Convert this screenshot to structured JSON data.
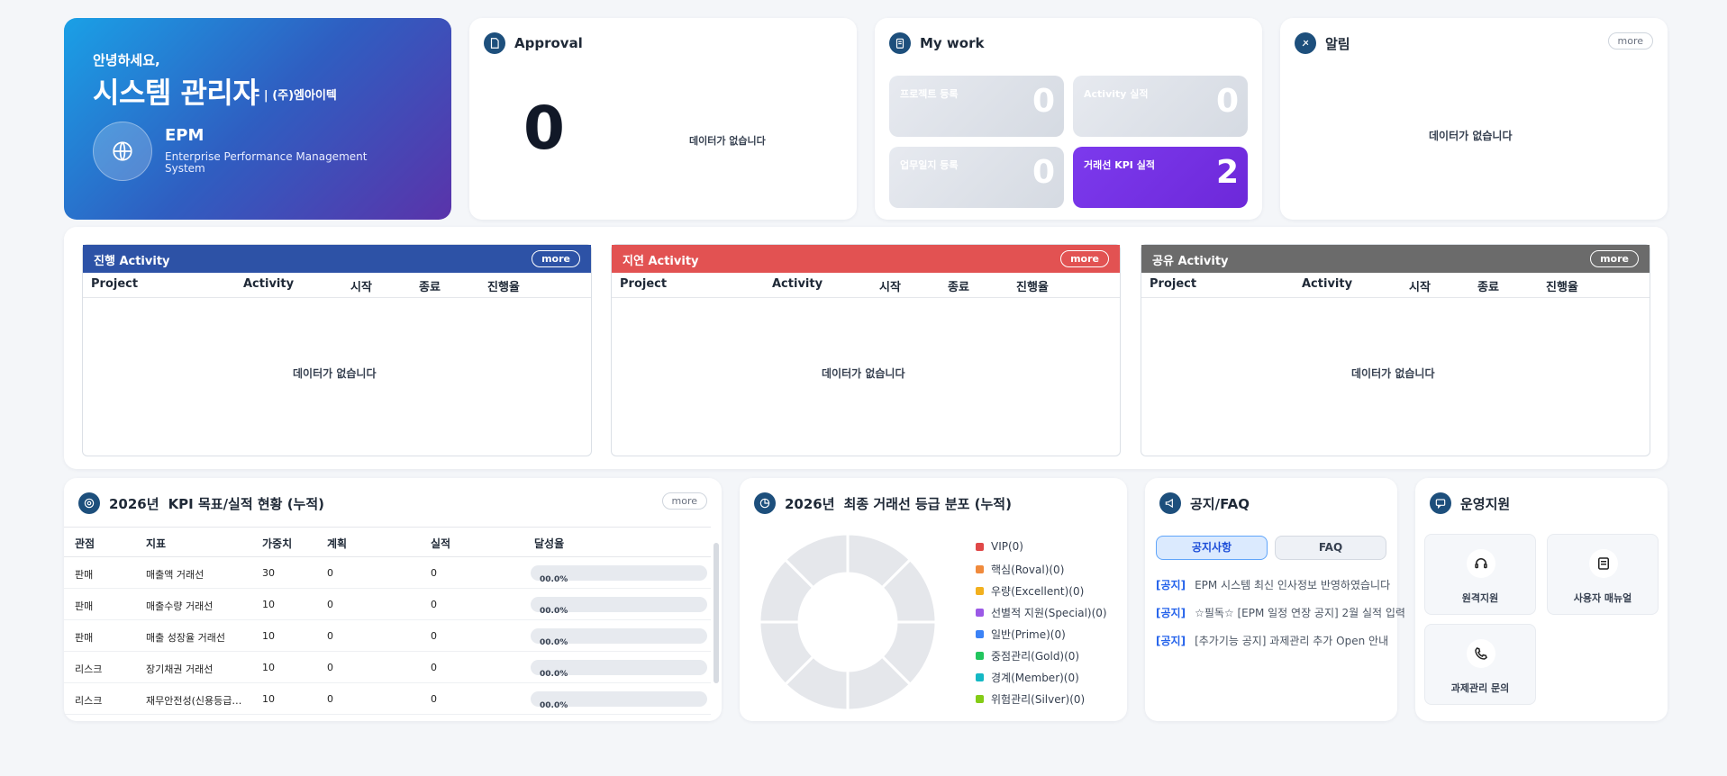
{
  "welcome": {
    "greeting": "안녕하세요,",
    "user_name": "시스템 관리자",
    "company": "- | (주)엠아이텍",
    "product": "EPM",
    "product_desc": "Enterprise Performance Management System"
  },
  "approval": {
    "title": "Approval",
    "count": "0",
    "empty": "데이터가 없습니다"
  },
  "mywork": {
    "title": "My work",
    "tiles": [
      {
        "label": "프로젝트 등록",
        "value": "0"
      },
      {
        "label": "Activity 실적",
        "value": "0"
      },
      {
        "label": "업무일지 등록",
        "value": "0"
      },
      {
        "label": "거래선 KPI 실적",
        "value": "2"
      }
    ]
  },
  "alarm": {
    "title": "알림",
    "more": "more",
    "empty": "데이터가 없습니다"
  },
  "activities": {
    "columns": [
      "Project",
      "Activity",
      "시작",
      "종료",
      "진행율"
    ],
    "empty": "데이터가 없습니다",
    "more": "more",
    "panels": [
      {
        "title": "진행 Activity",
        "color": "#2d52a6"
      },
      {
        "title": "지연 Activity",
        "color": "#e25252"
      },
      {
        "title": "공유 Activity",
        "color": "#6b6b6b"
      }
    ]
  },
  "kpi": {
    "year": "2026년",
    "title": "KPI 목표/실적 현황 (누적)",
    "more": "more",
    "columns": [
      "관점",
      "지표",
      "가중치",
      "계획",
      "실적",
      "달성율"
    ],
    "rows": [
      {
        "view": "판매",
        "metric": "매출액  거래선",
        "weight": "30",
        "plan": "0",
        "actual": "0",
        "rate": "00.0%",
        "rate_value": 0
      },
      {
        "view": "판매",
        "metric": "매출수량  거래선",
        "weight": "10",
        "plan": "0",
        "actual": "0",
        "rate": "00.0%",
        "rate_value": 0
      },
      {
        "view": "판매",
        "metric": "매출 성장율  거래선",
        "weight": "10",
        "plan": "0",
        "actual": "0",
        "rate": "00.0%",
        "rate_value": 0
      },
      {
        "view": "리스크",
        "metric": "장기채권  거래선",
        "weight": "10",
        "plan": "0",
        "actual": "0",
        "rate": "00.0%",
        "rate_value": 0
      },
      {
        "view": "리스크",
        "metric": "재무안전성(신용등급…",
        "weight": "10",
        "plan": "0",
        "actual": "0",
        "rate": "00.0%",
        "rate_value": 0
      }
    ]
  },
  "grade": {
    "year": "2026년",
    "title": "최종 거래선 등급 분포 (누적)",
    "legend": [
      {
        "label": "VIP(0)",
        "color": "#e04848"
      },
      {
        "label": "핵심(Roval)(0)",
        "color": "#f08a3c"
      },
      {
        "label": "우량(Excellent)(0)",
        "color": "#f2b01e"
      },
      {
        "label": "선별적 지원(Special)(0)",
        "color": "#9b59e6"
      },
      {
        "label": "일반(Prime)(0)",
        "color": "#3b82f6"
      },
      {
        "label": "중점관리(Gold)(0)",
        "color": "#22c55e"
      },
      {
        "label": "경계(Member)(0)",
        "color": "#14b8c4"
      },
      {
        "label": "위험관리(Silver)(0)",
        "color": "#84cc16"
      }
    ]
  },
  "chart_data": {
    "type": "pie",
    "categories": [
      "VIP",
      "핵심(Roval)",
      "우량(Excellent)",
      "선별적 지원(Special)",
      "일반(Prime)",
      "중점관리(Gold)",
      "경계(Member)",
      "위험관리(Silver)"
    ],
    "values": [
      0,
      0,
      0,
      0,
      0,
      0,
      0,
      0
    ],
    "title": "2026년 최종 거래선 등급 분포 (누적)",
    "legend": "right"
  },
  "notice": {
    "title": "공지/FAQ",
    "tabs": [
      "공지사항",
      "FAQ"
    ],
    "items": [
      {
        "tag": "[공지]",
        "text": "EPM 시스템 최신 인사정보 반영하였습니다"
      },
      {
        "tag": "[공지]",
        "text": "☆필독☆ [EPM 일정 연장 공지] 2월 실적 입력"
      },
      {
        "tag": "[공지]",
        "text": "[추가기능 공지] 과제관리 추가 Open 안내"
      }
    ]
  },
  "support": {
    "title": "운영지원",
    "items": [
      "원격지원",
      "사용자 매뉴얼",
      "과제관리 문의"
    ]
  }
}
